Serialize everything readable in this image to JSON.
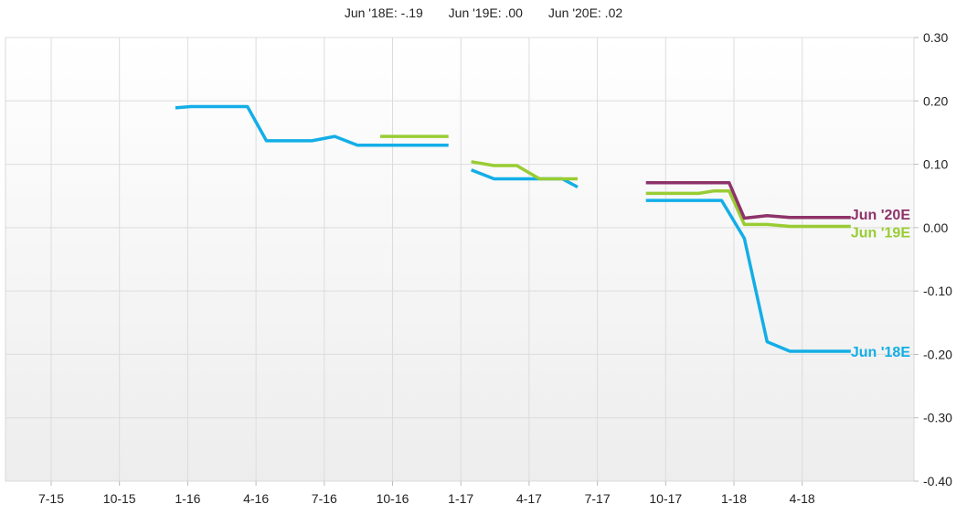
{
  "header": {
    "items": [
      "Jun '18E: -.19",
      "Jun '19E: .00",
      "Jun '20E: .02"
    ]
  },
  "chart_data": {
    "type": "line",
    "title": "",
    "xlabel": "",
    "ylabel": "",
    "x_tick_labels": [
      "7-15",
      "10-15",
      "1-16",
      "4-16",
      "7-16",
      "10-16",
      "1-17",
      "4-17",
      "7-17",
      "10-17",
      "1-18",
      "4-18"
    ],
    "y_tick_labels": [
      "0.30",
      "0.20",
      "0.10",
      "0.00",
      "-0.10",
      "-0.20",
      "-0.30",
      "-0.40"
    ],
    "y_ticks": [
      0.3,
      0.2,
      0.1,
      0.0,
      -0.1,
      -0.2,
      -0.3,
      -0.4
    ],
    "ylim": [
      -0.4,
      0.3
    ],
    "x_start": "2015-07",
    "x_end": "2018-08",
    "grid": true,
    "y_axis_position": "right",
    "series": [
      {
        "name": "Jun '18E",
        "end_label": "Jun '18E",
        "color": "#13aee7",
        "segments": [
          [
            [
              "2015-12-15",
              0.189
            ],
            [
              "2016-01-05",
              0.191
            ],
            [
              "2016-02-15",
              0.191
            ],
            [
              "2016-03-20",
              0.191
            ],
            [
              "2016-04-15",
              0.137
            ],
            [
              "2016-06-15",
              0.137
            ],
            [
              "2016-07-15",
              0.144
            ],
            [
              "2016-08-15",
              0.13
            ],
            [
              "2016-12-15",
              0.13
            ]
          ],
          [
            [
              "2017-01-15",
              0.091
            ],
            [
              "2017-02-15",
              0.077
            ],
            [
              "2017-04-15",
              0.077
            ],
            [
              "2017-05-15",
              0.077
            ],
            [
              "2017-06-05",
              0.064
            ]
          ],
          [
            [
              "2017-09-05",
              0.043
            ],
            [
              "2017-12-15",
              0.043
            ],
            [
              "2018-01-15",
              -0.017
            ],
            [
              "2018-02-15",
              -0.18
            ],
            [
              "2018-03-15",
              -0.195
            ],
            [
              "2018-06-05",
              -0.195
            ]
          ]
        ]
      },
      {
        "name": "Jun '19E",
        "end_label": "Jun '19E",
        "color": "#99cc33",
        "segments": [
          [
            [
              "2016-09-15",
              0.144
            ],
            [
              "2016-12-15",
              0.144
            ]
          ],
          [
            [
              "2017-01-15",
              0.104
            ],
            [
              "2017-02-15",
              0.098
            ],
            [
              "2017-03-15",
              0.098
            ],
            [
              "2017-04-15",
              0.077
            ],
            [
              "2017-06-05",
              0.077
            ]
          ],
          [
            [
              "2017-09-05",
              0.054
            ],
            [
              "2017-11-15",
              0.054
            ],
            [
              "2017-12-05",
              0.058
            ],
            [
              "2017-12-25",
              0.058
            ],
            [
              "2018-01-15",
              0.005
            ],
            [
              "2018-02-15",
              0.005
            ],
            [
              "2018-03-15",
              0.002
            ],
            [
              "2018-06-05",
              0.002
            ]
          ]
        ]
      },
      {
        "name": "Jun '20E",
        "end_label": "Jun '20E",
        "color": "#8e3369",
        "segments": [
          [
            [
              "2017-09-05",
              0.071
            ],
            [
              "2017-12-25",
              0.071
            ],
            [
              "2018-01-15",
              0.015
            ],
            [
              "2018-02-15",
              0.019
            ],
            [
              "2018-03-15",
              0.016
            ],
            [
              "2018-06-05",
              0.016
            ]
          ]
        ]
      }
    ]
  }
}
